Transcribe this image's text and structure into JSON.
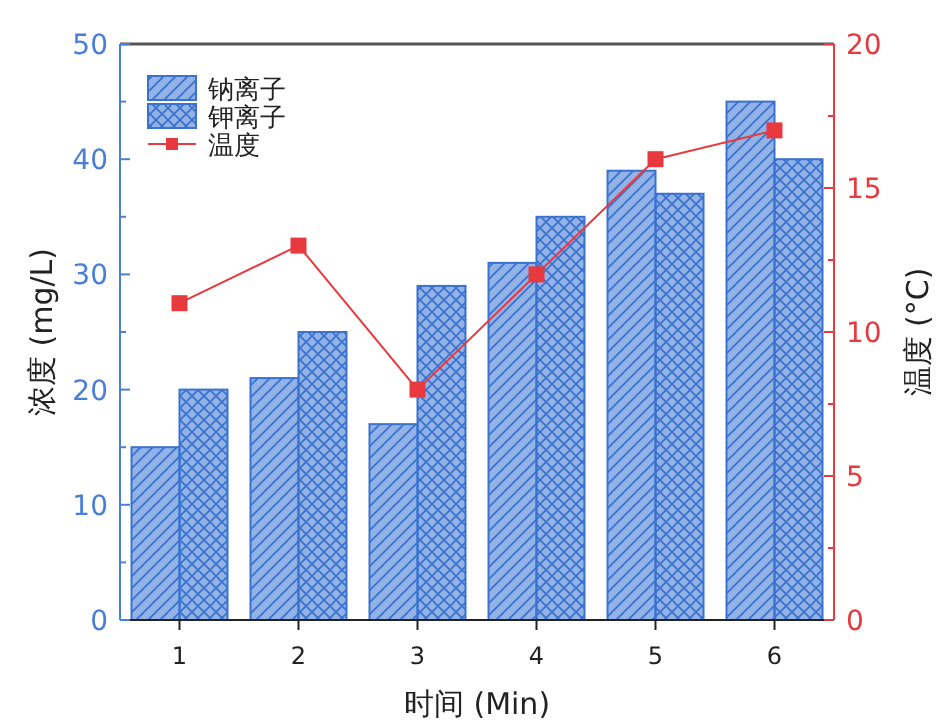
{
  "chart_data": {
    "type": "bar",
    "xlabel": "时间 (Min)",
    "ylabel": "浓度 (mg/L)",
    "y2label": "温度 (°C)",
    "categories": [
      "1",
      "2",
      "3",
      "4",
      "5",
      "6"
    ],
    "series": [
      {
        "name": "钠离子",
        "color": "#3a72d0",
        "values": [
          15,
          21,
          17,
          31,
          39,
          45
        ]
      },
      {
        "name": "钾离子",
        "color": "#3a72d0",
        "values": [
          20,
          25,
          29,
          35,
          37,
          40
        ]
      },
      {
        "name": "温度",
        "type": "line",
        "axis": "y2",
        "color": "#e8393f",
        "marker": "square",
        "values": [
          11,
          13,
          8,
          12,
          16,
          17
        ]
      }
    ],
    "ylim": [
      0,
      50
    ],
    "yticks": [
      0,
      10,
      20,
      30,
      40,
      50
    ],
    "y2lim": [
      0,
      20
    ],
    "y2ticks": [
      0,
      5,
      10,
      15,
      20
    ],
    "grid": false,
    "legend": "top left"
  }
}
